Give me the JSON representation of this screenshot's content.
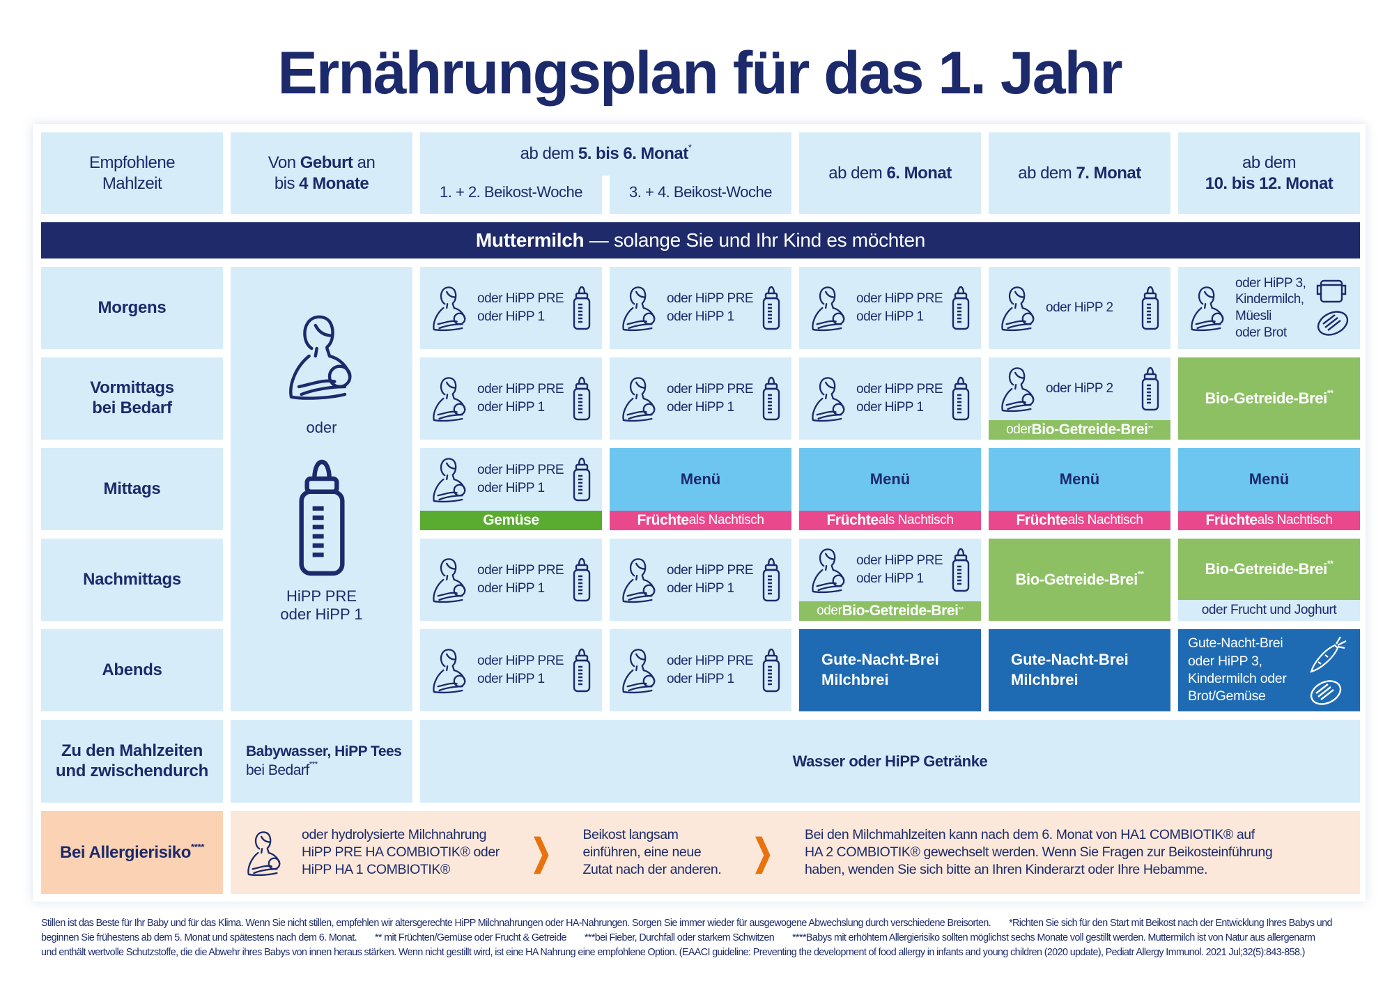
{
  "title": "Ernährungsplan für das 1. Jahr",
  "colors": {
    "navy": "#1c2a6b",
    "light_blue": "#d6ecf9",
    "green": "#8dc063",
    "bright_green": "#5aac30",
    "pink": "#e9488c",
    "sky_blue": "#6cc6ef",
    "dark_blue": "#1f6bb3",
    "peach": "#fbd2b3",
    "light_peach": "#fbe8da",
    "orange": "#e8730e"
  },
  "header": {
    "meal": "Empfohlene\nMahlzeit",
    "birth": {
      "a": "Von ",
      "b": "Geburt",
      "c": " an",
      "d": "bis ",
      "e": "4 Monate"
    },
    "m5": {
      "a": "ab dem ",
      "b": "5. bis 6. Monat",
      "sup": "*",
      "w1": "1. + 2. Beikost-Woche",
      "w2": "3. + 4. Beikost-Woche"
    },
    "m6": {
      "a": "ab dem ",
      "b": "6. Monat"
    },
    "m7": {
      "a": "ab dem ",
      "b": "7. Monat"
    },
    "m10": {
      "a": "ab dem",
      "b": "10. bis 12. Monat"
    }
  },
  "band": {
    "bold": "Muttermilch",
    "rest": " — solange Sie und Ihr Kind es möchten"
  },
  "rows": {
    "morgens": "Morgens",
    "vormittags": "Vormittags\nbei Bedarf",
    "mittags": "Mittags",
    "nachmittags": "Nachmittags",
    "abends": "Abends",
    "zu": "Zu den Mahlzeiten\nund zwischendurch",
    "allergie": "Bei Allergierisiko",
    "allergie_sup": "****"
  },
  "birth_col": {
    "oder": "oder",
    "formula": "HiPP PRE\noder HiPP 1"
  },
  "text": {
    "pre1": "oder HiPP PRE\noder HiPP 1",
    "hipp2": "oder HiPP 2",
    "morgens10": "oder HiPP 3,\nKindermilch,\nMüesli\noder Brot",
    "oder": "oder ",
    "bio": "Bio-Getreide-Brei",
    "bio_sup": "**",
    "gemuese": "Gemüse",
    "menu": "Menü",
    "fruechte": "Früchte",
    "nachtisch": " als Nachtisch",
    "frucht_joghurt": "oder Frucht und Joghurt",
    "gute_nacht": "Gute-Nacht-Brei\nMilchbrei",
    "abends10": "Gute-Nacht-Brei\noder HiPP 3,\nKindermilch oder\nBrot/Gemüse",
    "babywasser": "Babywasser, HiPP Tees",
    "bei_bedarf": "bei Bedarf",
    "bei_bedarf_sup": "***",
    "wasser": "Wasser oder HiPP Getränke"
  },
  "allergy": {
    "t1": "oder hydrolysierte Milchnahrung\nHiPP PRE HA COMBIOTIK® oder\nHiPP HA 1 COMBIOTIK®",
    "t2": "Beikost langsam\neinführen, eine neue\nZutat nach der anderen.",
    "t3": "Bei den Milchmahlzeiten kann nach dem 6. Monat von HA1 COMBIOTIK® auf\nHA 2 COMBIOTIK® gewechselt werden. Wenn Sie Fragen zur Beikosteinführung\nhaben, wenden Sie sich bitte an Ihren Kinderarzt oder Ihre Hebamme.",
    "chevron": "❯"
  },
  "footnotes": {
    "l1a": "Stillen ist das Beste für Ihr Baby und für das Klima. Wenn Sie nicht stillen, empfehlen wir altersgerechte HiPP Milchnahrungen oder HA-Nahrungen. Sorgen Sie immer wieder für ausgewogene Abwechslung durch verschiedene Breisorten.",
    "l1b": "*Richten Sie sich für den Start mit Beikost nach der Entwicklung Ihres Babys und",
    "l2a": "beginnen Sie frühestens ab dem 5. Monat und spätestens nach dem 6. Monat.",
    "l2b": "** mit Früchten/Gemüse oder Frucht & Getreide",
    "l2c": "***bei Fieber, Durchfall oder starkem Schwitzen",
    "l2d": "****Babys mit erhöhtem Allergierisiko sollten möglichst sechs Monate voll gestillt werden. Muttermilch ist von Natur aus allergenarm",
    "l3": "und enthält wertvolle Schutzstoffe, die die Abwehr ihres Babys von innen heraus stärken. Wenn nicht gestillt wird, ist eine HA Nahrung eine empfohlene Option. (EAACI guideline: Preventing the development of food allergy in infants and young children (2020 update), Pediatr Allergy Immunol. 2021 Jul;32(5):843-858.)"
  }
}
